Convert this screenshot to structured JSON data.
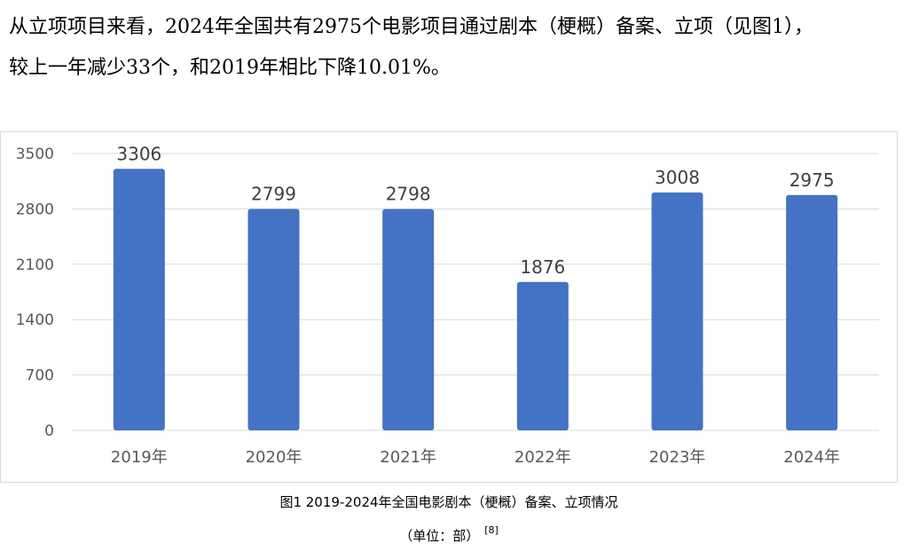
{
  "intro_text": {
    "line1": "从立项项目来看，2024年全国共有2975个电影项目通过剧本（梗概）备案、立项（见图1），",
    "line2": "较上一年减少33个，和2019年相比下降10.01%。"
  },
  "caption": {
    "title": "图1 2019-2024年全国电影剧本（梗概）备案、立项情况",
    "unit": "（单位：部）",
    "ref": "[8]"
  },
  "chart_data": {
    "type": "bar",
    "title": "",
    "xlabel": "",
    "ylabel": "",
    "categories": [
      "2019年",
      "2020年",
      "2021年",
      "2022年",
      "2023年",
      "2024年"
    ],
    "values": [
      3306,
      2799,
      2798,
      1876,
      3008,
      2975
    ],
    "data_labels": [
      "3306",
      "2799",
      "2798",
      "1876",
      "3008",
      "2975"
    ],
    "ylim": [
      0,
      3500
    ],
    "yticks": [
      0,
      700,
      1400,
      2100,
      2800,
      3500
    ],
    "ytick_labels": [
      "0",
      "700",
      "1400",
      "2100",
      "2800",
      "3500"
    ],
    "grid": true,
    "legend": "none",
    "colors": {
      "bar": "#4472c4",
      "grid": "#d9d9d9",
      "axis_text": "#595959",
      "label_text": "#404040"
    }
  }
}
